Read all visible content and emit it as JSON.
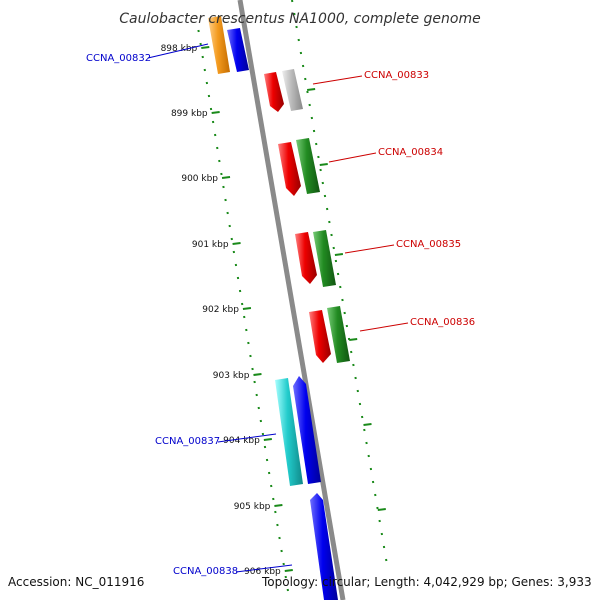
{
  "map": {
    "title": "Caulobacter crescentus NA1000, complete genome",
    "kbp_ticks": [
      "898 kbp",
      "899 kbp",
      "900 kbp",
      "901 kbp",
      "902 kbp",
      "903 kbp",
      "904 kbp",
      "905 kbp",
      "906 kbp"
    ],
    "genes": [
      {
        "label": "CCNA_00832",
        "side": "left",
        "color": "#0000cc"
      },
      {
        "label": "CCNA_00833",
        "side": "right",
        "color": "#cc0000"
      },
      {
        "label": "CCNA_00834",
        "side": "right",
        "color": "#cc0000"
      },
      {
        "label": "CCNA_00835",
        "side": "right",
        "color": "#cc0000"
      },
      {
        "label": "CCNA_00836",
        "side": "right",
        "color": "#cc0000"
      },
      {
        "label": "CCNA_00837",
        "side": "left",
        "color": "#0000cc"
      },
      {
        "label": "CCNA_00838",
        "side": "left",
        "color": "#0000cc"
      }
    ],
    "feature_colors": {
      "orange": "#f39a1e",
      "blue": "#0000ee",
      "red": "#ee0000",
      "gray": "#bbbbbb",
      "green": "#228b22",
      "cyan": "#22cccc",
      "backbone": "#8a8a8a",
      "tick": "#1a8a1a"
    }
  },
  "footer": {
    "accession": "Accession: NC_011916",
    "summary": "Topology: circular; Length: 4,042,929 bp; Genes: 3,933"
  }
}
